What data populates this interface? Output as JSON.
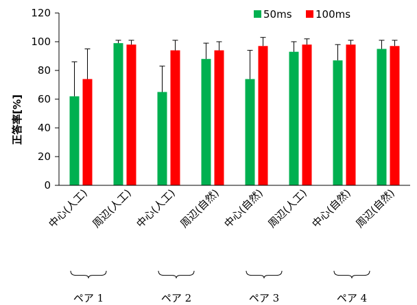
{
  "chart_data": {
    "type": "bar",
    "ylabel": "正答率[%]",
    "ylim": [
      0,
      120
    ],
    "yticks": [
      0,
      20,
      40,
      60,
      80,
      100,
      120
    ],
    "grid": false,
    "legend_position": "top-right",
    "categories": [
      "中心(人工)",
      "周辺(人工)",
      "中心(人工)",
      "周辺(自然)",
      "中心(自然)",
      "周辺(人工)",
      "中心(自然)",
      "周辺(自然)"
    ],
    "series": [
      {
        "name": "50ms",
        "color": "#00b050",
        "values": [
          62,
          99,
          65,
          88,
          74,
          93,
          87,
          95
        ],
        "errors": [
          24,
          2,
          18,
          11,
          20,
          7,
          11,
          6
        ]
      },
      {
        "name": "100ms",
        "color": "#ff0000",
        "values": [
          74,
          98,
          94,
          94,
          97,
          98,
          98,
          97
        ],
        "errors": [
          21,
          3,
          7,
          6,
          6,
          4,
          3,
          4
        ]
      }
    ],
    "groups": [
      {
        "label": "ペア 1",
        "categories": [
          0,
          1
        ]
      },
      {
        "label": "ペア 2",
        "categories": [
          2,
          3
        ]
      },
      {
        "label": "ペア 3",
        "categories": [
          4,
          5
        ]
      },
      {
        "label": "ペア 4",
        "categories": [
          6,
          7
        ]
      }
    ]
  }
}
